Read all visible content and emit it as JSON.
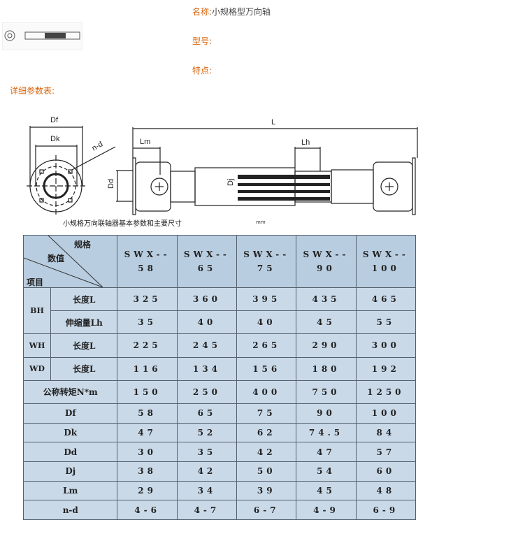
{
  "product": {
    "name_label": "名称:",
    "name_value": "小规格型万向轴",
    "model_label": "型号:",
    "model_value": "",
    "feature_label": "特点:",
    "feature_value": ""
  },
  "params_heading": "详细参数表:",
  "drawing": {
    "labels": {
      "Df": "Df",
      "Dk": "Dk",
      "nd": "n-d",
      "L": "L",
      "Lm": "Lm",
      "Lh": "Lh",
      "Dd": "Dd",
      "Dj": "Dj"
    }
  },
  "table": {
    "caption": "小规格万向联轴器基本参数和主要尺寸",
    "unit": "mm",
    "corner": {
      "spec": "规格",
      "value": "数值",
      "item": "项目"
    },
    "columns": [
      {
        "top": "SWX--",
        "bottom": "58"
      },
      {
        "top": "SWX--",
        "bottom": "65"
      },
      {
        "top": "SWX--",
        "bottom": "75"
      },
      {
        "top": "SWX--",
        "bottom": "90"
      },
      {
        "top": "SWX--",
        "bottom": "100"
      }
    ],
    "rows": [
      {
        "group": "BH",
        "item": "长度L",
        "values": [
          "325",
          "360",
          "395",
          "435",
          "465"
        ]
      },
      {
        "group": "",
        "item": "伸缩量Lh",
        "values": [
          "35",
          "40",
          "40",
          "45",
          "55"
        ]
      },
      {
        "group": "WH",
        "item": "长度L",
        "values": [
          "225",
          "245",
          "265",
          "290",
          "300"
        ]
      },
      {
        "group": "WD",
        "item": "长度L",
        "values": [
          "116",
          "134",
          "156",
          "180",
          "192"
        ]
      },
      {
        "item": "公称转矩N*m",
        "values": [
          "150",
          "250",
          "400",
          "750",
          "1250"
        ]
      },
      {
        "item": "Df",
        "values": [
          "58",
          "65",
          "75",
          "90",
          "100"
        ]
      },
      {
        "item": "Dk",
        "values": [
          "47",
          "52",
          "62",
          "74.5",
          "84"
        ]
      },
      {
        "item": "Dd",
        "values": [
          "30",
          "35",
          "42",
          "47",
          "57"
        ]
      },
      {
        "item": "Dj",
        "values": [
          "38",
          "42",
          "50",
          "54",
          "60"
        ]
      },
      {
        "item": "Lm",
        "values": [
          "29",
          "34",
          "39",
          "45",
          "48"
        ]
      },
      {
        "item": "n-d",
        "values": [
          "4-6",
          "4-7",
          "6-7",
          "4-9",
          "6-9"
        ]
      }
    ]
  }
}
